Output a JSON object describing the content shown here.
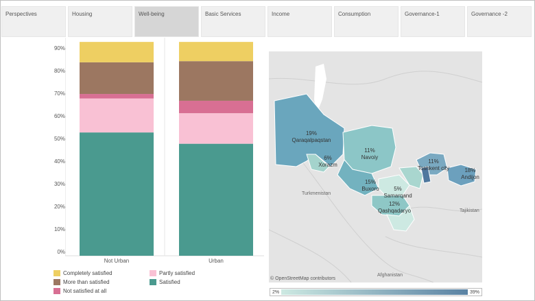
{
  "tabs": [
    {
      "label": "Perspectives",
      "active": false
    },
    {
      "label": "Housing",
      "active": false
    },
    {
      "label": "Well-being",
      "active": true
    },
    {
      "label": "Basic Services",
      "active": false
    },
    {
      "label": "Income",
      "active": false
    },
    {
      "label": "Consumption",
      "active": false
    },
    {
      "label": "Governance-1",
      "active": false
    },
    {
      "label": "Governance -2",
      "active": false
    }
  ],
  "chart_data": {
    "type": "bar",
    "stacked": true,
    "categories": [
      "Not Urban",
      "Urban"
    ],
    "yticks": [
      "0%",
      "10%",
      "20%",
      "30%",
      "40%",
      "50%",
      "60%",
      "70%",
      "80%",
      "90%"
    ],
    "ylim": [
      0,
      94
    ],
    "series": [
      {
        "name": "Satisfied",
        "color": "#4a9a8f",
        "values": [
          54.5,
          49.5
        ]
      },
      {
        "name": "Partly satisfied",
        "color": "#f9c1d4",
        "values": [
          15,
          13.5
        ]
      },
      {
        "name": "Not satisfied at all",
        "color": "#d86f93",
        "values": [
          2,
          5.5
        ]
      },
      {
        "name": "More than satisfied",
        "color": "#9c7761",
        "values": [
          14,
          17.5
        ]
      },
      {
        "name": "Completely satisfied",
        "color": "#eecf62",
        "values": [
          9,
          8.5
        ]
      }
    ],
    "legend": [
      {
        "label": "Completely satisfied",
        "color": "#eecf62"
      },
      {
        "label": "Partly satisfied",
        "color": "#f9c1d4"
      },
      {
        "label": "More than satisfied",
        "color": "#9c7761"
      },
      {
        "label": "Satisfied",
        "color": "#4a9a8f"
      },
      {
        "label": "Not satisfied at all",
        "color": "#d86f93"
      }
    ]
  },
  "map": {
    "regions": [
      {
        "label": "19%",
        "name": "Qaraqalpaqstan"
      },
      {
        "label": "6%",
        "name": "Xorazm"
      },
      {
        "label": "11%",
        "name": "Navoiy"
      },
      {
        "label": "15%",
        "name": "Buxoro"
      },
      {
        "label": "5%",
        "name": "Samarqand"
      },
      {
        "label": "12%",
        "name": "Qashqadaryo"
      },
      {
        "label": "11%",
        "name": "Toshkent city"
      },
      {
        "label": "18%",
        "name": "Andijon"
      }
    ],
    "basemap_labels": [
      "Turkmenistan",
      "Tajikistan",
      "Afghanistan"
    ],
    "attribution": "© OpenStreetMap contributors",
    "scale_min": "2%",
    "scale_max": "39%",
    "scale_colors": [
      "#cde9e2",
      "#5a82a3"
    ]
  }
}
